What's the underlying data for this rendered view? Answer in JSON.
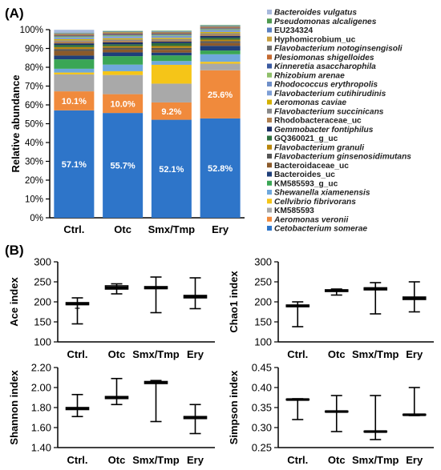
{
  "panels": {
    "a_label": "(A)",
    "b_label": "(B)"
  },
  "chart_data": [
    {
      "type": "bar",
      "stacked": true,
      "percent": true,
      "ylabel": "Relative abundance",
      "ylim": [
        0,
        100
      ],
      "yticks": [
        "0%",
        "10%",
        "20%",
        "30%",
        "40%",
        "50%",
        "60%",
        "70%",
        "80%",
        "90%",
        "100%"
      ],
      "grid": false,
      "legend_placement": "right",
      "categories": [
        "Ctrl.",
        "Otc",
        "Smx/Tmp",
        "Ery"
      ],
      "series": [
        {
          "name": "Cetobacterium somerae",
          "italic": true,
          "color": "#2e75c9",
          "values": [
            57.1,
            55.7,
            52.1,
            52.8
          ]
        },
        {
          "name": "Aeromonas veronii",
          "italic": true,
          "color": "#f08a3c",
          "values": [
            10.1,
            10.0,
            9.2,
            25.6
          ]
        },
        {
          "name": "KM585593",
          "italic": false,
          "color": "#a9a9a9",
          "values": [
            9.0,
            10.2,
            10.0,
            3.5
          ]
        },
        {
          "name": "Cellvibrio fibrivorans",
          "italic": true,
          "color": "#f5c518",
          "values": [
            1.0,
            2.0,
            10.0,
            1.0
          ]
        },
        {
          "name": "Shewanella xiamenensis",
          "italic": true,
          "color": "#6fa8dc",
          "values": [
            2.0,
            3.5,
            2.0,
            4.0
          ]
        },
        {
          "name": "KM585593_g_uc",
          "italic": false,
          "color": "#3aa655",
          "values": [
            5.0,
            4.5,
            3.0,
            2.0
          ]
        },
        {
          "name": "Bacteroides_uc",
          "italic": false,
          "color": "#1f3f7a",
          "values": [
            2.0,
            2.0,
            1.5,
            2.5
          ]
        },
        {
          "name": "Bacteroidaceae_uc",
          "italic": false,
          "color": "#8b5a2b",
          "values": [
            2.5,
            1.5,
            1.5,
            1.5
          ]
        },
        {
          "name": "Flavobacterium ginsenosidimutans",
          "italic": true,
          "color": "#555555",
          "values": [
            1.0,
            1.0,
            1.0,
            1.0
          ]
        },
        {
          "name": "Flavobacterium granuli",
          "italic": true,
          "color": "#b8860b",
          "values": [
            1.0,
            0.8,
            1.0,
            0.8
          ]
        },
        {
          "name": "GQ360021_g_uc",
          "italic": false,
          "color": "#2f6f3e",
          "values": [
            1.2,
            1.0,
            1.5,
            1.0
          ]
        },
        {
          "name": "Gemmobacter fontiphilus",
          "italic": true,
          "color": "#1c2f66",
          "values": [
            0.8,
            1.0,
            0.8,
            1.0
          ]
        },
        {
          "name": "Rhodobacteraceae_uc",
          "italic": false,
          "color": "#b08050",
          "values": [
            1.0,
            0.8,
            0.7,
            0.8
          ]
        },
        {
          "name": "Flavobacterium succinicans",
          "italic": true,
          "color": "#888888",
          "values": [
            0.6,
            0.8,
            0.7,
            0.6
          ]
        },
        {
          "name": "Aeromonas caviae",
          "italic": true,
          "color": "#d4b000",
          "values": [
            0.6,
            0.6,
            0.6,
            0.6
          ]
        },
        {
          "name": "Flavobacterium cutihirudinis",
          "italic": true,
          "color": "#7e9fd6",
          "values": [
            0.5,
            0.6,
            0.6,
            0.6
          ]
        },
        {
          "name": "Rhodococcus erythropolis",
          "italic": true,
          "color": "#6f8fc8",
          "values": [
            0.5,
            0.5,
            0.5,
            0.5
          ]
        },
        {
          "name": "Rhizobium arenae",
          "italic": true,
          "color": "#8fbf6a",
          "values": [
            0.5,
            0.5,
            0.5,
            0.5
          ]
        },
        {
          "name": "Kinneretia asaccharophila",
          "italic": true,
          "color": "#3b5aa0",
          "values": [
            0.4,
            0.5,
            0.5,
            0.4
          ]
        },
        {
          "name": "Plesiomonas shigelloides",
          "italic": true,
          "color": "#c46a32",
          "values": [
            0.4,
            0.4,
            0.4,
            0.4
          ]
        },
        {
          "name": "Flavobacterium notoginsengisoli",
          "italic": true,
          "color": "#707070",
          "values": [
            0.4,
            0.4,
            0.4,
            0.4
          ]
        },
        {
          "name": "Hyphomicrobium_uc",
          "italic": false,
          "color": "#c8a040",
          "values": [
            0.3,
            0.4,
            0.3,
            0.3
          ]
        },
        {
          "name": "EU234324",
          "italic": false,
          "color": "#5a7fc0",
          "values": [
            0.3,
            0.3,
            0.3,
            0.3
          ]
        },
        {
          "name": "Pseudomonas alcaligenes",
          "italic": true,
          "color": "#4f9a50",
          "values": [
            0.2,
            0.3,
            0.3,
            0.3
          ]
        },
        {
          "name": "Bacteroides vulgatus",
          "italic": true,
          "color": "#a7b9dc",
          "values": [
            1.5,
            0.0,
            0.0,
            0.0
          ]
        }
      ],
      "bar_labels": [
        {
          "series": "Cetobacterium somerae",
          "texts": [
            "57.1%",
            "55.7%",
            "52.1%",
            "52.8%"
          ]
        },
        {
          "series": "Aeromonas veronii",
          "texts": [
            "10.1%",
            "10.0%",
            "9.2%",
            "25.6%"
          ]
        }
      ]
    },
    {
      "type": "boxplot",
      "ylabel": "Ace index",
      "ylim": [
        100,
        300
      ],
      "yticks": [
        100,
        150,
        200,
        250,
        300
      ],
      "categories": [
        "Ctrl.",
        "Otc",
        "Smx/Tmp",
        "Ery"
      ],
      "boxes": [
        {
          "min": 145,
          "q1": 193,
          "median": 195,
          "q3": 198,
          "max": 210,
          "outliers": [
            184
          ]
        },
        {
          "min": 220,
          "q1": 232,
          "median": 235,
          "q3": 240,
          "max": 245
        },
        {
          "min": 173,
          "q1": 233,
          "median": 235,
          "q3": 238,
          "max": 262
        },
        {
          "min": 183,
          "q1": 210,
          "median": 213,
          "q3": 216,
          "max": 260
        }
      ]
    },
    {
      "type": "boxplot",
      "ylabel": "Chao1 index",
      "ylim": [
        100,
        300
      ],
      "yticks": [
        100,
        150,
        200,
        250,
        300
      ],
      "categories": [
        "Ctrl.",
        "Otc",
        "Smx/Tmp",
        "Ery"
      ],
      "boxes": [
        {
          "min": 138,
          "q1": 188,
          "median": 190,
          "q3": 192,
          "max": 200
        },
        {
          "min": 217,
          "q1": 226,
          "median": 228,
          "q3": 230,
          "max": 232
        },
        {
          "min": 170,
          "q1": 230,
          "median": 233,
          "q3": 235,
          "max": 248
        },
        {
          "min": 175,
          "q1": 206,
          "median": 209,
          "q3": 212,
          "max": 250
        }
      ]
    },
    {
      "type": "boxplot",
      "ylabel": "Shannon index",
      "ylim": [
        1.4,
        2.2
      ],
      "yticks": [
        1.4,
        1.6,
        1.8,
        2.0,
        2.2
      ],
      "categories": [
        "Ctrl.",
        "Otc",
        "Smx/Tmp",
        "Ery"
      ],
      "boxes": [
        {
          "min": 1.71,
          "q1": 1.78,
          "median": 1.79,
          "q3": 1.8,
          "max": 1.93
        },
        {
          "min": 1.83,
          "q1": 1.89,
          "median": 1.9,
          "q3": 1.91,
          "max": 2.09
        },
        {
          "min": 1.66,
          "q1": 2.04,
          "median": 2.05,
          "q3": 2.06,
          "max": 2.07
        },
        {
          "min": 1.54,
          "q1": 1.69,
          "median": 1.7,
          "q3": 1.71,
          "max": 1.83
        }
      ]
    },
    {
      "type": "boxplot",
      "ylabel": "Simpson index",
      "ylim": [
        0.25,
        0.45
      ],
      "yticks": [
        0.25,
        0.3,
        0.35,
        0.4,
        0.45
      ],
      "categories": [
        "Ctrl.",
        "Otc",
        "Smx/Tmp",
        "Ery"
      ],
      "boxes": [
        {
          "min": 0.32,
          "q1": 0.369,
          "median": 0.37,
          "q3": 0.371,
          "max": 0.372
        },
        {
          "min": 0.29,
          "q1": 0.339,
          "median": 0.34,
          "q3": 0.341,
          "max": 0.38
        },
        {
          "min": 0.27,
          "q1": 0.289,
          "median": 0.29,
          "q3": 0.291,
          "max": 0.38
        },
        {
          "min": 0.33,
          "q1": 0.331,
          "median": 0.332,
          "q3": 0.333,
          "max": 0.4
        }
      ]
    }
  ]
}
